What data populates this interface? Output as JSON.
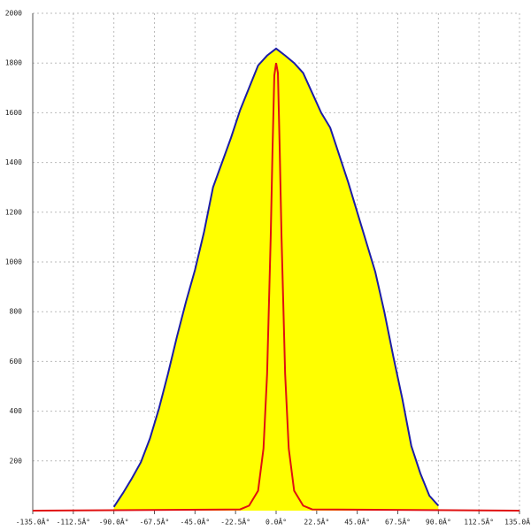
{
  "chart_data": {
    "type": "area",
    "xlim": [
      -135,
      135
    ],
    "xticks": [
      {
        "value": -135,
        "label": "-135.0Â°"
      },
      {
        "value": -112.5,
        "label": "-112.5Â°"
      },
      {
        "value": -90,
        "label": "-90.0Â°"
      },
      {
        "value": -67.5,
        "label": "-67.5Â°"
      },
      {
        "value": -45,
        "label": "-45.0Â°"
      },
      {
        "value": -22.5,
        "label": "-22.5Â°"
      },
      {
        "value": 0,
        "label": "0.0Â°"
      },
      {
        "value": 22.5,
        "label": "22.5Â°"
      },
      {
        "value": 45,
        "label": "45.0Â°"
      },
      {
        "value": 67.5,
        "label": "67.5Â°"
      },
      {
        "value": 90,
        "label": "90.0Â°"
      },
      {
        "value": 112.5,
        "label": "112.5Â°"
      },
      {
        "value": 135,
        "label": "135.0Â°"
      }
    ],
    "ylim": [
      0,
      2000
    ],
    "yticks": [
      200,
      400,
      600,
      800,
      1000,
      1200,
      1400,
      1600,
      1800,
      2000
    ],
    "grid": true,
    "series": [
      {
        "color": "#1c1ca8",
        "fill": "#ffff00",
        "x": [
          -90,
          -85,
          -80,
          -75,
          -70,
          -65,
          -60,
          -55,
          -50,
          -45,
          -40,
          -35,
          -30,
          -25,
          -20,
          -15,
          -10,
          -5,
          0,
          5,
          10,
          15,
          20,
          25,
          30,
          35,
          40,
          45,
          50,
          55,
          60,
          65,
          70,
          75,
          80,
          85,
          90
        ],
        "values": [
          15,
          70,
          130,
          195,
          290,
          410,
          550,
          700,
          840,
          968,
          1120,
          1300,
          1400,
          1500,
          1610,
          1700,
          1790,
          1830,
          1858,
          1830,
          1800,
          1760,
          1680,
          1600,
          1540,
          1430,
          1320,
          1200,
          1080,
          960,
          800,
          620,
          450,
          260,
          150,
          60,
          20
        ]
      },
      {
        "color": "#e01010",
        "x": [
          -135,
          -20,
          -15,
          -10,
          -7,
          -5,
          -3,
          -2,
          -1,
          0,
          1,
          2,
          3,
          5,
          7,
          10,
          15,
          20,
          135
        ],
        "values": [
          0,
          5,
          20,
          80,
          250,
          550,
          1100,
          1450,
          1750,
          1800,
          1760,
          1450,
          1100,
          550,
          250,
          80,
          20,
          5,
          0
        ]
      }
    ]
  }
}
